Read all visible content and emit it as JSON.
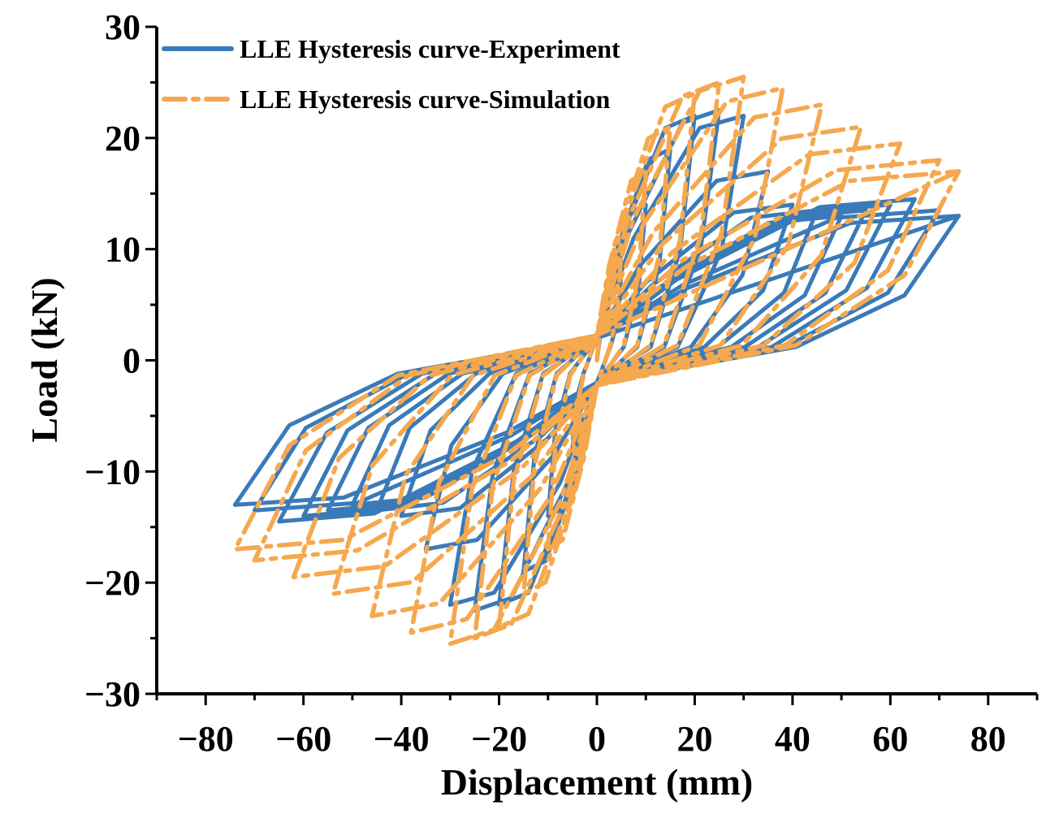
{
  "chart_data": {
    "type": "line",
    "title": "",
    "xlabel": "Displacement (mm)",
    "ylabel": "Load (kN)",
    "xlim": [
      -90,
      90
    ],
    "ylim": [
      -30,
      30
    ],
    "xticks": [
      -80,
      -60,
      -40,
      -20,
      0,
      20,
      40,
      60,
      80
    ],
    "xtick_labels": [
      "−80",
      "−60",
      "−40",
      "−20",
      "0",
      "20",
      "40",
      "60",
      "80"
    ],
    "yticks": [
      -30,
      -20,
      -10,
      0,
      10,
      20,
      30
    ],
    "ytick_labels": [
      "−30",
      "−20",
      "−10",
      "0",
      "10",
      "20",
      "30"
    ],
    "legend_position": "top-left",
    "series": [
      {
        "name": "LLE Hysteresis curve-Experiment",
        "color": "#3a7ab8",
        "style": "solid",
        "amplitudes": [
          5,
          10,
          15,
          20,
          25,
          30,
          35,
          40,
          45,
          50,
          55,
          60,
          65,
          70,
          74
        ],
        "peak_loads_kN": [
          8,
          14,
          19,
          22,
          22.5,
          22,
          17,
          14,
          13.5,
          13,
          13.5,
          14,
          14.5,
          13.5,
          13
        ],
        "pinch_load_kN": 4,
        "ends_at_max_amplitude": [
          74,
          13
        ]
      },
      {
        "name": "LLE Hysteresis curve-Simulation",
        "color": "#f5a84e",
        "style": "dash-dot",
        "amplitudes": [
          5,
          10,
          15,
          20,
          25,
          30,
          38,
          46,
          54,
          62,
          70,
          74
        ],
        "peak_loads_kN": [
          10,
          17,
          21,
          24,
          25,
          25.5,
          24.5,
          23,
          21,
          19.5,
          18,
          17
        ],
        "pinch_load_kN": 4.5,
        "ends_at_max_amplitude": [
          74,
          17
        ]
      }
    ]
  }
}
